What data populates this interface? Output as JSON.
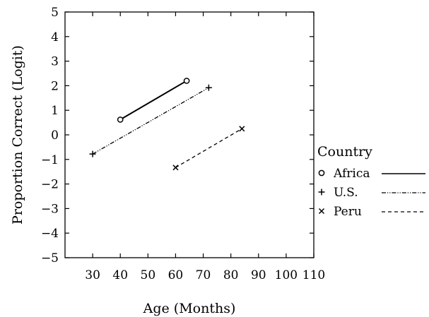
{
  "chart_data": {
    "type": "line",
    "xlabel": "Age (Months)",
    "ylabel": "Proportion Correct (Logit)",
    "xlim": [
      20,
      110
    ],
    "ylim": [
      -5,
      5
    ],
    "x_ticks": [
      30,
      40,
      50,
      60,
      70,
      80,
      90,
      100,
      110
    ],
    "x_tick_labels": [
      "30",
      "40",
      "50",
      "60",
      "70",
      "80",
      "90",
      "100",
      "110"
    ],
    "y_ticks": [
      5,
      4,
      3,
      2,
      1,
      0,
      -1,
      -2,
      -3,
      -4,
      -5
    ],
    "y_tick_labels": [
      "5",
      "4",
      "3",
      "2",
      "1",
      "0",
      "−1",
      "−2",
      "−3",
      "−4",
      "−5"
    ],
    "grid": false,
    "legend": {
      "title": "Country",
      "position": "right"
    },
    "series": [
      {
        "name": "Africa",
        "marker": "circle",
        "line_style": "solid",
        "x": [
          40,
          64
        ],
        "y": [
          0.62,
          2.2
        ]
      },
      {
        "name": "U.S.",
        "marker": "plus",
        "line_style": "dash-dot-dot",
        "x": [
          30,
          72
        ],
        "y": [
          -0.78,
          1.92
        ]
      },
      {
        "name": "Peru",
        "marker": "x",
        "line_style": "dashed",
        "x": [
          60,
          84
        ],
        "y": [
          -1.33,
          0.25
        ]
      }
    ]
  }
}
